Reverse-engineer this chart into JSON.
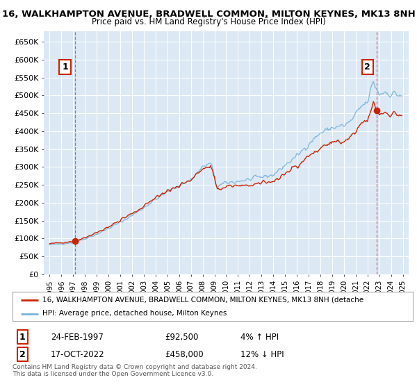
{
  "title": "16, WALKHAMPTON AVENUE, BRADWELL COMMON, MILTON KEYNES, MK13 8NH",
  "subtitle": "Price paid vs. HM Land Registry's House Price Index (HPI)",
  "bg_color": "#ffffff",
  "plot_bg_color": "#dce9f5",
  "grid_color": "#ffffff",
  "sale1_date": 1997.15,
  "sale1_price": 92500,
  "sale2_date": 2022.8,
  "sale2_price": 458000,
  "hpi_label": "HPI: Average price, detached house, Milton Keynes",
  "price_label": "16, WALKHAMPTON AVENUE, BRADWELL COMMON, MILTON KEYNES, MK13 8NH (detache",
  "footer": "Contains HM Land Registry data © Crown copyright and database right 2024.\nThis data is licensed under the Open Government Licence v3.0.",
  "ylim": [
    0,
    680000
  ],
  "yticks": [
    0,
    50000,
    100000,
    150000,
    200000,
    250000,
    300000,
    350000,
    400000,
    450000,
    500000,
    550000,
    600000,
    650000
  ],
  "xlim_start": 1994.5,
  "xlim_end": 2025.5,
  "hpi_color": "#7bb3d9",
  "price_color": "#cc2200",
  "vline_color": "#cc4444"
}
